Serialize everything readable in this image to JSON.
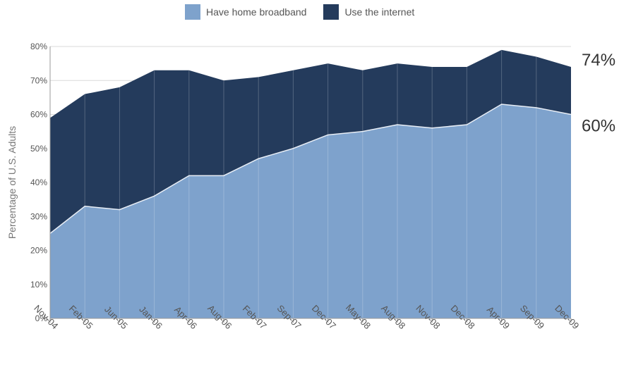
{
  "chart_data": {
    "type": "area",
    "title": "",
    "xlabel": "",
    "ylabel": "Percentage of U.S. Adults",
    "ylim": [
      0,
      80
    ],
    "y_ticks": [
      "0%",
      "10%",
      "20%",
      "30%",
      "40%",
      "50%",
      "60%",
      "70%",
      "80%"
    ],
    "categories": [
      "Nov-04",
      "Feb-05",
      "Jun-05",
      "Jan-06",
      "Apr-06",
      "Aug-06",
      "Feb-07",
      "Sep-07",
      "Dec-07",
      "May-08",
      "Aug-08",
      "Nov-08",
      "Dec-08",
      "Apr-09",
      "Sep-09",
      "Dec-09"
    ],
    "series": [
      {
        "name": "Have home broadband",
        "color": "#7ea2cc",
        "values": [
          25,
          33,
          32,
          36,
          42,
          42,
          47,
          50,
          54,
          55,
          57,
          56,
          57,
          63,
          62,
          60
        ]
      },
      {
        "name": "Use the internet",
        "color": "#243b5c",
        "values": [
          59,
          66,
          68,
          73,
          73,
          70,
          71,
          73,
          75,
          73,
          75,
          74,
          74,
          79,
          77,
          74
        ]
      }
    ],
    "end_labels": [
      "74%",
      "60%"
    ],
    "grid": true,
    "legend": "top-center"
  }
}
